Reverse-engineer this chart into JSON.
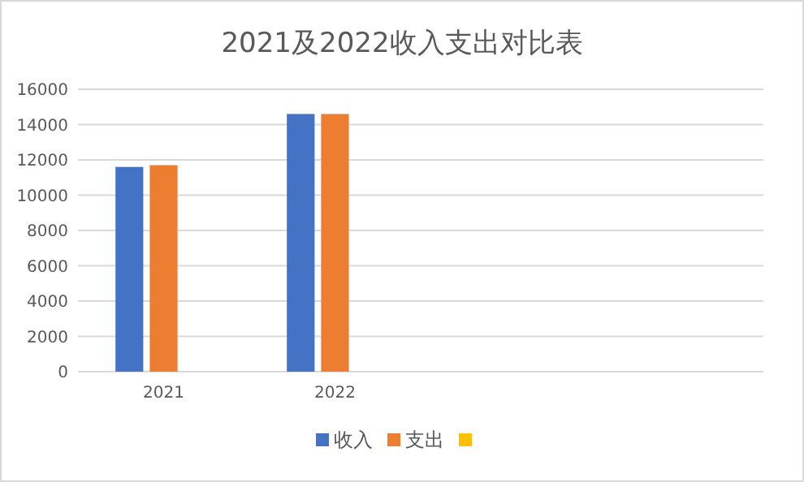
{
  "chart_data": {
    "type": "bar",
    "title": "2021及2022收入支出对比表",
    "categories": [
      "2021",
      "2022",
      null,
      null
    ],
    "series": [
      {
        "name": "收入",
        "color": "#4472c4",
        "values": [
          11600,
          14600,
          null,
          null
        ]
      },
      {
        "name": "支出",
        "color": "#ed7d31",
        "values": [
          11700,
          14600,
          null,
          null
        ]
      },
      {
        "color": "#ffc000",
        "values": [
          null,
          null,
          null,
          null
        ]
      }
    ],
    "ylim": [
      0,
      16000
    ],
    "yticks": [
      0,
      2000,
      4000,
      6000,
      8000,
      10000,
      12000,
      14000,
      16000
    ],
    "grid": "y",
    "legend": "bottom"
  }
}
